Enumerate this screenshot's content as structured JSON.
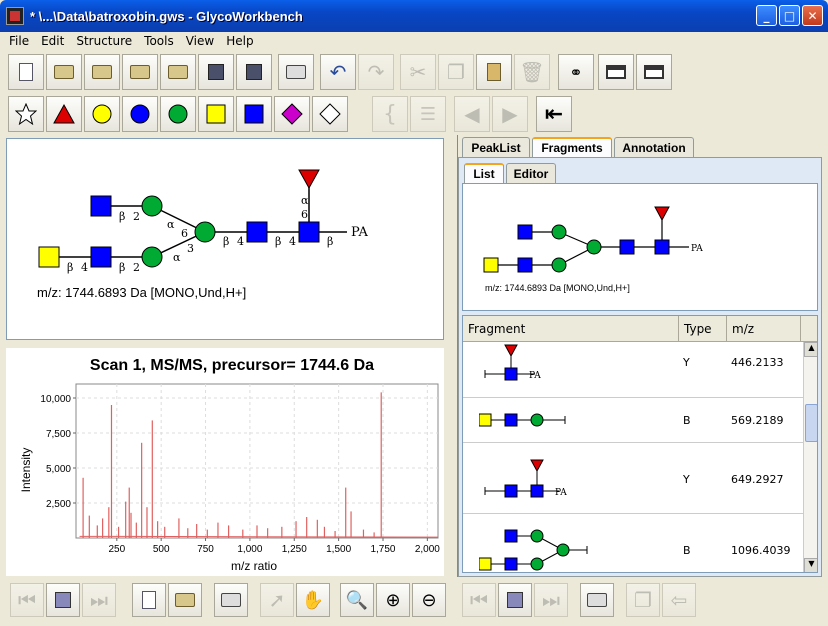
{
  "window": {
    "title": "* \\...\\Data\\batroxobin.gws - GlycoWorkbench",
    "buttons": [
      "minimize",
      "maximize",
      "close"
    ]
  },
  "menu": [
    "File",
    "Edit",
    "Structure",
    "Tools",
    "View",
    "Help"
  ],
  "toolbar1": [
    "new-document-icon",
    "open-folder-icon",
    "add-folder-icon",
    "import-spectrum-icon",
    "open-recent-icon",
    "save-icon",
    "save-as-icon",
    "print-icon",
    "undo-icon",
    "redo-icon",
    "cut-icon",
    "copy-icon",
    "paste-icon",
    "delete-icon",
    "search-binoculars-icon",
    "layout-a-icon",
    "layout-b-icon"
  ],
  "toolbar2": {
    "residues": [
      {
        "name": "star",
        "color": "#ffffff"
      },
      {
        "name": "triangle",
        "color": "#dd0000"
      },
      {
        "name": "circle",
        "color": "#ffff00"
      },
      {
        "name": "circle",
        "color": "#0000ff"
      },
      {
        "name": "circle",
        "color": "#00aa33"
      },
      {
        "name": "square",
        "color": "#ffff00"
      },
      {
        "name": "square",
        "color": "#0000ff"
      },
      {
        "name": "diamond",
        "color": "#cc00cc"
      },
      {
        "name": "diamond",
        "color": "#ffffff"
      }
    ]
  },
  "structure": {
    "labels": {
      "b2a": "β",
      "b2a_pos": "2",
      "b4": "β",
      "b4_pos": "4",
      "b2b": "β",
      "b2b_pos": "2",
      "a6": "α",
      "a6_pos": "6",
      "a3": "α",
      "a3_pos": "3",
      "b4c": "β",
      "b4c_pos": "4",
      "b4d": "β",
      "b4d_pos": "4",
      "fuc_a": "α",
      "fuc_pos": "6",
      "end_b": "β",
      "reducing": "PA"
    },
    "mz": "m/z: 1744.6893 Da [MONO,Und,H+]"
  },
  "spectrum": {
    "title": "Scan 1, MS/MS, precursor= 1744.6 Da"
  },
  "chart_data": {
    "type": "line",
    "title": "Scan 1, MS/MS, precursor= 1744.6 Da",
    "xlabel": "m/z ratio",
    "ylabel": "Intensity",
    "xlim": [
      20,
      2060
    ],
    "ylim": [
      0,
      11000
    ],
    "xticks": [
      "250",
      "500",
      "750",
      "1,000",
      "1,250",
      "1,500",
      "1,750",
      "2,000"
    ],
    "yticks": [
      "2,500",
      "5,000",
      "7,500",
      "10,000"
    ],
    "peaks": [
      [
        60,
        4300
      ],
      [
        95,
        1600
      ],
      [
        140,
        900
      ],
      [
        170,
        1400
      ],
      [
        205,
        2200
      ],
      [
        220,
        9500
      ],
      [
        260,
        800
      ],
      [
        300,
        2600
      ],
      [
        320,
        3600
      ],
      [
        330,
        1800
      ],
      [
        360,
        1100
      ],
      [
        390,
        6800
      ],
      [
        420,
        2200
      ],
      [
        450,
        8400
      ],
      [
        480,
        1200
      ],
      [
        520,
        800
      ],
      [
        600,
        1400
      ],
      [
        650,
        700
      ],
      [
        700,
        1000
      ],
      [
        760,
        600
      ],
      [
        820,
        1100
      ],
      [
        880,
        900
      ],
      [
        960,
        600
      ],
      [
        1040,
        900
      ],
      [
        1100,
        700
      ],
      [
        1180,
        800
      ],
      [
        1260,
        1200
      ],
      [
        1320,
        1500
      ],
      [
        1380,
        1300
      ],
      [
        1420,
        800
      ],
      [
        1480,
        500
      ],
      [
        1540,
        3600
      ],
      [
        1570,
        1900
      ],
      [
        1640,
        600
      ],
      [
        1700,
        400
      ],
      [
        1740,
        10400
      ]
    ],
    "grid": true,
    "color": "#e06060"
  },
  "right": {
    "tabs": [
      "PeakList",
      "Fragments",
      "Annotation"
    ],
    "subtabs": [
      "List",
      "Editor"
    ],
    "preview_mz": "m/z: 1744.6893 Da [MONO,Und,H+]",
    "preview_reducing": "PA",
    "columns": [
      "Fragment",
      "Type",
      "m/z"
    ],
    "rows": [
      {
        "type": "Y",
        "mz": "446.2133",
        "tag": "PA"
      },
      {
        "type": "B",
        "mz": "569.2189",
        "tag": ""
      },
      {
        "type": "Y",
        "mz": "649.2927",
        "tag": "PA"
      },
      {
        "type": "B",
        "mz": "1096.4039",
        "tag": ""
      }
    ]
  },
  "bottom_left_buttons": [
    "prev-icon",
    "stop-icon",
    "next-icon",
    "new-doc-icon",
    "open-icon",
    "print-icon",
    "pointer-icon",
    "hand-icon",
    "zoom-icon",
    "zoom-in-icon",
    "zoom-out-icon"
  ],
  "bottom_right_buttons": [
    "prev-icon",
    "stop-icon",
    "next-icon",
    "print-icon",
    "copy-icon",
    "back-icon"
  ]
}
